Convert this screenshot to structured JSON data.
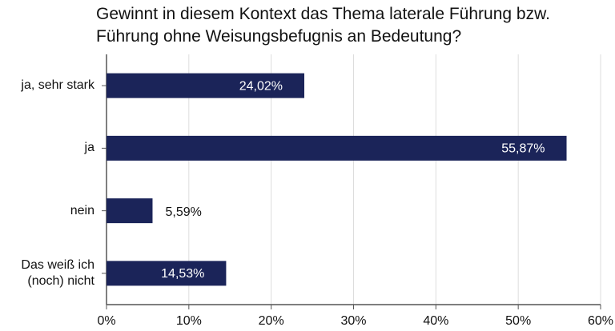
{
  "chart_data": {
    "type": "hbar",
    "title": "Gewinnt in diesem Kontext das Thema laterale Führung bzw. Führung ohne Weisungsbefugnis an Bedeutung?",
    "categories": [
      "ja, sehr stark",
      "ja",
      "nein",
      "Das weiß ich (noch) nicht"
    ],
    "values": [
      24.02,
      55.87,
      5.59,
      14.53
    ],
    "value_labels": [
      "24,02%",
      "55,87%",
      "5,59%",
      "14,53%"
    ],
    "color": "#1b2459",
    "xlim": [
      0,
      60
    ],
    "xticks": [
      {
        "value": 0,
        "label": "0%"
      },
      {
        "value": 10,
        "label": "10%"
      },
      {
        "value": 20,
        "label": "20%"
      },
      {
        "value": 30,
        "label": "30%"
      },
      {
        "value": 40,
        "label": "40%"
      },
      {
        "value": 50,
        "label": "50%"
      },
      {
        "value": 60,
        "label": "60%"
      }
    ],
    "grid": true
  }
}
